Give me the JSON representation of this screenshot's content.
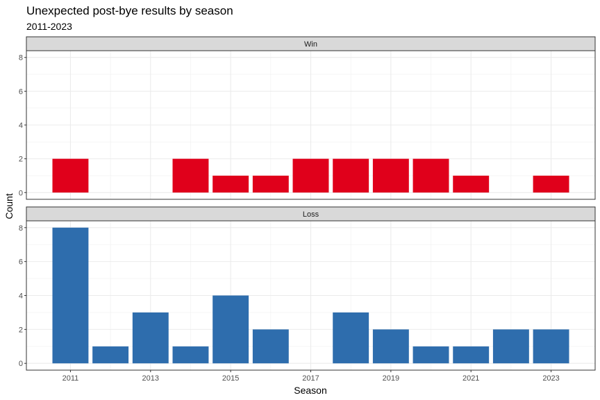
{
  "chart_data": {
    "type": "bar",
    "title": "Unexpected post-bye results by season",
    "subtitle": "2011-2023",
    "xlabel": "Season",
    "ylabel": "Count",
    "x": [
      2011,
      2012,
      2013,
      2014,
      2015,
      2016,
      2017,
      2018,
      2019,
      2020,
      2021,
      2022,
      2023
    ],
    "x_ticks": [
      "2011",
      "2013",
      "2015",
      "2017",
      "2019",
      "2021",
      "2023"
    ],
    "y_ticks": [
      "0",
      "2",
      "4",
      "6",
      "8"
    ],
    "ylim": [
      0,
      8
    ],
    "grid": true,
    "facets": [
      {
        "label": "Win",
        "color": "#E0001B",
        "values": [
          2,
          0,
          0,
          2,
          1,
          1,
          2,
          2,
          2,
          2,
          1,
          0,
          1
        ]
      },
      {
        "label": "Loss",
        "color": "#2E6DAD",
        "values": [
          8,
          1,
          3,
          1,
          4,
          2,
          0,
          3,
          2,
          1,
          1,
          2,
          2
        ]
      }
    ]
  }
}
